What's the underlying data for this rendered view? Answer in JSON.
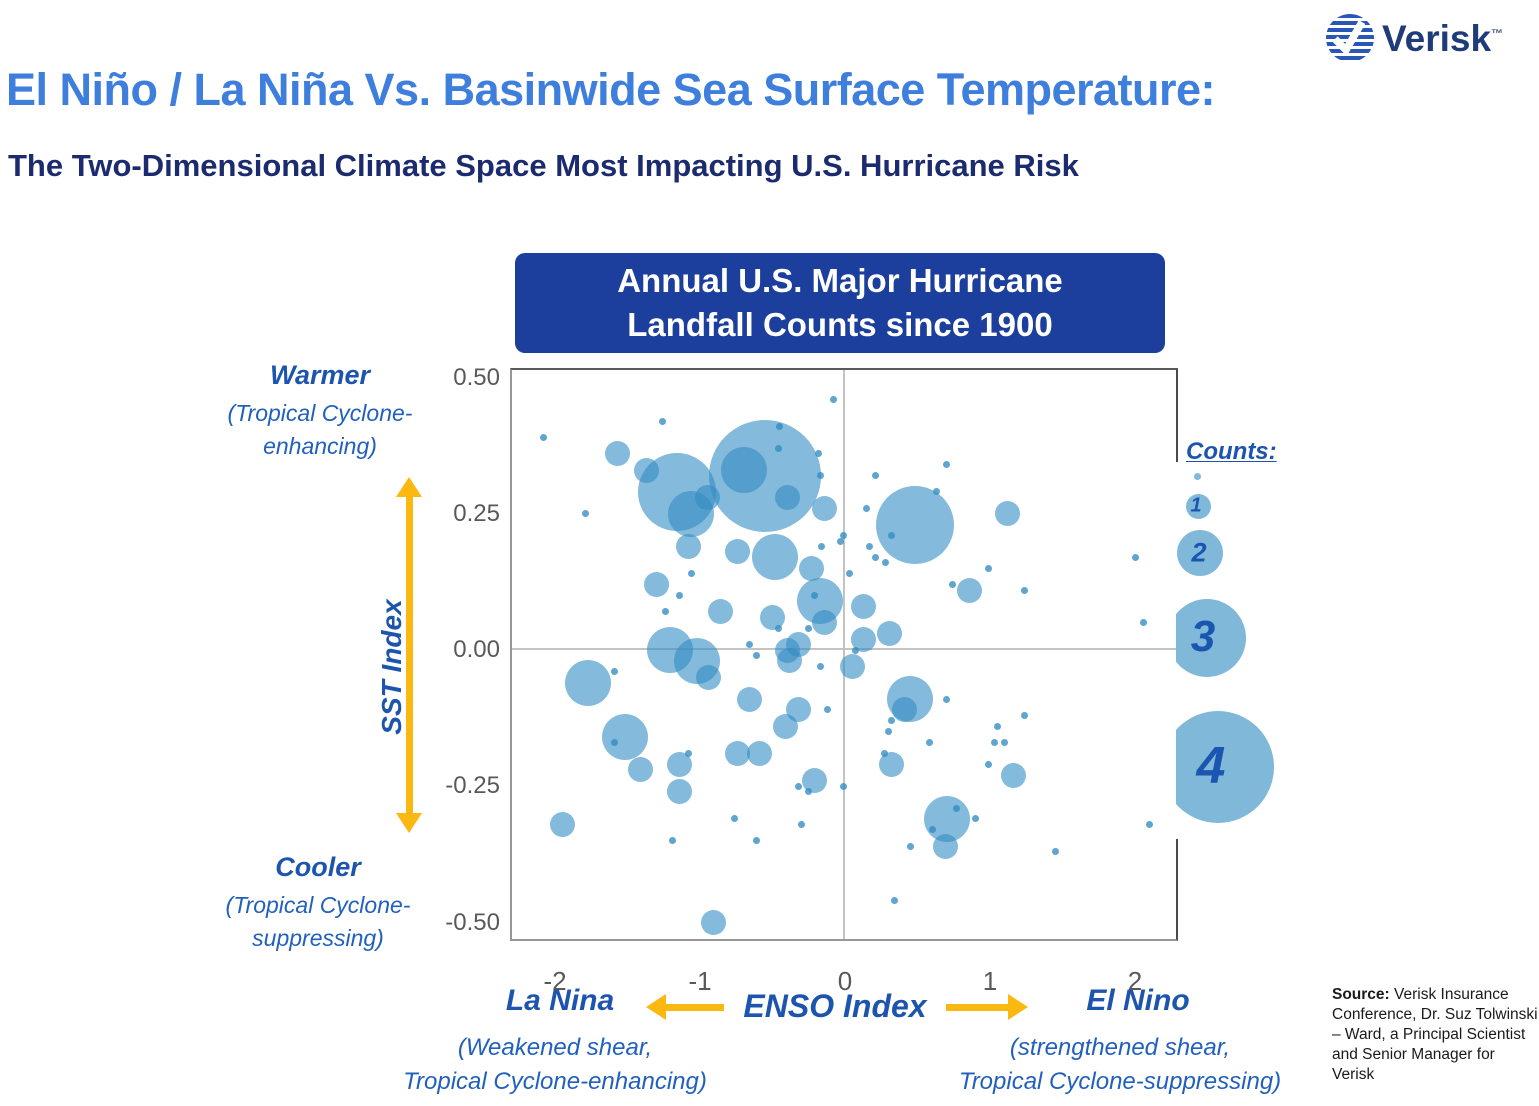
{
  "header": {
    "logo": {
      "brand": "Verisk",
      "trademark": "™"
    },
    "title": "El Niño / La Niña Vs. Basinwide Sea Surface Temperature:",
    "subtitle": "The Two-Dimensional Climate Space Most Impacting U.S. Hurricane Risk"
  },
  "chart_data": {
    "type": "scatter",
    "title": "Annual U.S. Major Hurricane Landfall Counts since 1900",
    "title_lines": [
      "Annual U.S. Major Hurricane",
      "Landfall Counts since 1900"
    ],
    "xlabel": "ENSO Index",
    "ylabel": "SST Index",
    "x_ticks": [
      "-2",
      "-1",
      "0",
      "1",
      "2"
    ],
    "y_ticks": [
      "0.50",
      "0.25",
      "0.00",
      "-0.25",
      "-0.50"
    ],
    "xlim": [
      -2.3,
      2.3
    ],
    "ylim": [
      -0.51,
      0.51
    ],
    "grid": "zero lines only",
    "legend": {
      "title": "Counts:",
      "sizes": [
        "1",
        "2",
        "3",
        "4"
      ],
      "size_to_radius_px": {
        "0": 3.5,
        "1": 12.5,
        "2": 23,
        "3": 39,
        "4": 56
      },
      "position": "right"
    },
    "series_note": "Each bubble is one year since 1900; position = (ENSO Index, SST Index); bubble size = U.S. major hurricane landfall count (smallest dots = 0).",
    "points": [
      [
        -0.08,
        0.46,
        0
      ],
      [
        -2.08,
        0.39,
        0
      ],
      [
        -1.26,
        0.42,
        0
      ],
      [
        -0.45,
        0.41,
        0
      ],
      [
        -0.46,
        0.37,
        0
      ],
      [
        -1.57,
        0.36,
        1
      ],
      [
        -0.18,
        0.36,
        0
      ],
      [
        -1.37,
        0.33,
        1
      ],
      [
        -0.17,
        0.32,
        0
      ],
      [
        -0.55,
        0.32,
        4
      ],
      [
        -0.7,
        0.33,
        2
      ],
      [
        0.21,
        0.32,
        0
      ],
      [
        0.7,
        0.34,
        0
      ],
      [
        -1.16,
        0.29,
        3
      ],
      [
        -0.95,
        0.28,
        1
      ],
      [
        -0.4,
        0.28,
        1
      ],
      [
        0.63,
        0.29,
        0
      ],
      [
        -0.14,
        0.26,
        1
      ],
      [
        0.15,
        0.26,
        0
      ],
      [
        -1.06,
        0.25,
        2
      ],
      [
        -1.79,
        0.25,
        0
      ],
      [
        1.12,
        0.25,
        1
      ],
      [
        0.48,
        0.23,
        3
      ],
      [
        0.32,
        0.21,
        0
      ],
      [
        -0.01,
        0.21,
        0
      ],
      [
        -0.03,
        0.2,
        0
      ],
      [
        -1.08,
        0.19,
        1
      ],
      [
        -0.16,
        0.19,
        0
      ],
      [
        0.17,
        0.19,
        0
      ],
      [
        -0.74,
        0.18,
        1
      ],
      [
        -0.48,
        0.17,
        2
      ],
      [
        0.21,
        0.17,
        0
      ],
      [
        0.28,
        0.16,
        0
      ],
      [
        2.0,
        0.17,
        0
      ],
      [
        -0.23,
        0.15,
        1
      ],
      [
        0.03,
        0.14,
        0
      ],
      [
        -1.06,
        0.14,
        0
      ],
      [
        -1.3,
        0.12,
        1
      ],
      [
        0.74,
        0.12,
        0
      ],
      [
        -1.14,
        0.1,
        0
      ],
      [
        0.86,
        0.11,
        1
      ],
      [
        1.24,
        0.11,
        0
      ],
      [
        0.99,
        0.15,
        0
      ],
      [
        -0.17,
        0.09,
        2
      ],
      [
        -0.21,
        0.1,
        0
      ],
      [
        0.13,
        0.08,
        1
      ],
      [
        -0.86,
        0.07,
        1
      ],
      [
        -1.24,
        0.07,
        0
      ],
      [
        2.06,
        0.05,
        0
      ],
      [
        -0.14,
        0.05,
        1
      ],
      [
        -0.5,
        0.06,
        1
      ],
      [
        -0.46,
        0.04,
        0
      ],
      [
        -0.25,
        0.04,
        0
      ],
      [
        0.13,
        0.02,
        1
      ],
      [
        0.31,
        0.03,
        1
      ],
      [
        -0.32,
        0.01,
        1
      ],
      [
        -0.66,
        0.01,
        0
      ],
      [
        -1.21,
        0.0,
        2
      ],
      [
        0.07,
        0.0,
        0
      ],
      [
        -0.4,
        0.0,
        1
      ],
      [
        -0.61,
        -0.01,
        0
      ],
      [
        -1.02,
        -0.02,
        2
      ],
      [
        -0.38,
        -0.02,
        1
      ],
      [
        0.05,
        -0.03,
        1
      ],
      [
        -0.17,
        -0.03,
        0
      ],
      [
        -1.59,
        -0.04,
        0
      ],
      [
        -0.94,
        -0.05,
        1
      ],
      [
        -1.77,
        -0.06,
        2
      ],
      [
        -0.66,
        -0.09,
        1
      ],
      [
        0.45,
        -0.09,
        2
      ],
      [
        0.7,
        -0.09,
        0
      ],
      [
        -0.32,
        -0.11,
        1
      ],
      [
        0.41,
        -0.11,
        1
      ],
      [
        -0.12,
        -0.11,
        0
      ],
      [
        0.32,
        -0.13,
        0
      ],
      [
        -0.41,
        -0.14,
        1
      ],
      [
        1.05,
        -0.14,
        0
      ],
      [
        0.3,
        -0.15,
        0
      ],
      [
        -1.52,
        -0.16,
        2
      ],
      [
        -1.59,
        -0.17,
        0
      ],
      [
        0.58,
        -0.17,
        0
      ],
      [
        1.03,
        -0.17,
        0
      ],
      [
        1.1,
        -0.17,
        0
      ],
      [
        1.24,
        -0.12,
        0
      ],
      [
        -0.74,
        -0.19,
        1
      ],
      [
        -0.59,
        -0.19,
        1
      ],
      [
        -1.08,
        -0.19,
        0
      ],
      [
        0.27,
        -0.19,
        0
      ],
      [
        -1.14,
        -0.21,
        1
      ],
      [
        0.32,
        -0.21,
        1
      ],
      [
        -1.41,
        -0.22,
        1
      ],
      [
        0.99,
        -0.21,
        0
      ],
      [
        -0.21,
        -0.24,
        1
      ],
      [
        -0.32,
        -0.25,
        0
      ],
      [
        -0.25,
        -0.26,
        0
      ],
      [
        -0.01,
        -0.25,
        0
      ],
      [
        -1.14,
        -0.26,
        1
      ],
      [
        1.16,
        -0.23,
        1
      ],
      [
        0.77,
        -0.29,
        0
      ],
      [
        0.7,
        -0.31,
        2
      ],
      [
        0.9,
        -0.31,
        0
      ],
      [
        -0.76,
        -0.31,
        0
      ],
      [
        -1.95,
        -0.32,
        1
      ],
      [
        -0.3,
        -0.32,
        0
      ],
      [
        0.6,
        -0.33,
        0
      ],
      [
        2.1,
        -0.32,
        0
      ],
      [
        -0.61,
        -0.35,
        0
      ],
      [
        -1.19,
        -0.35,
        0
      ],
      [
        0.69,
        -0.36,
        1
      ],
      [
        0.45,
        -0.36,
        0
      ],
      [
        1.45,
        -0.37,
        0
      ],
      [
        0.34,
        -0.46,
        0
      ],
      [
        -0.91,
        -0.5,
        1
      ]
    ]
  },
  "axis_annotations": {
    "warmer": {
      "title": "Warmer",
      "sub1": "(Tropical Cyclone-",
      "sub2": "enhancing)"
    },
    "cooler": {
      "title": "Cooler",
      "sub1": "(Tropical Cyclone-",
      "sub2": "suppressing)"
    },
    "sst_axis": "SST Index",
    "enso_axis": "ENSO Index",
    "la_nina": {
      "title": "La Nina",
      "sub1": "(Weakened shear,",
      "sub2": "Tropical Cyclone-enhancing)"
    },
    "el_nino": {
      "title": "El Nino",
      "sub1": "(strengthened shear,",
      "sub2": "Tropical Cyclone-suppressing)"
    }
  },
  "source": {
    "label": "Source:",
    "text": " Verisk Insurance Conference, Dr. Suz Tolwinski – Ward, a Principal Scientist and Senior Manager for Verisk"
  },
  "colors": {
    "title_blue": "#3E7EDD",
    "navy": "#1B2B6E",
    "box_navy": "#1C3E9C",
    "label_blue": "#1D55AE",
    "italic_blue": "#2160BE",
    "bubble": "#328CC3",
    "legend_number": "#1A56B0",
    "arrow_yellow": "#FBB811",
    "tick_gray": "#595959"
  }
}
